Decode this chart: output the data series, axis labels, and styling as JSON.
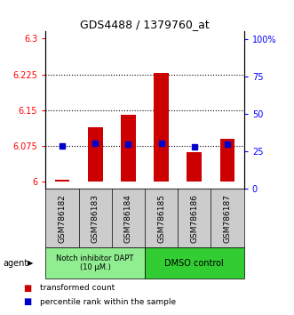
{
  "title": "GDS4488 / 1379760_at",
  "samples": [
    "GSM786182",
    "GSM786183",
    "GSM786184",
    "GSM786185",
    "GSM786186",
    "GSM786187"
  ],
  "bar_values": [
    6.004,
    6.115,
    6.14,
    6.228,
    6.063,
    6.09
  ],
  "bar_bottom": 6.0,
  "percentile_values": [
    0.285,
    0.305,
    0.298,
    0.305,
    0.283,
    0.298
  ],
  "ylim_left": [
    5.985,
    6.315
  ],
  "ylim_right": [
    0.0,
    1.05
  ],
  "yticks_left": [
    6.0,
    6.075,
    6.15,
    6.225,
    6.3
  ],
  "ytick_labels_left": [
    "6",
    "6.075",
    "6.15",
    "6.225",
    "6.3"
  ],
  "yticks_right": [
    0.0,
    0.25,
    0.5,
    0.75,
    1.0
  ],
  "ytick_labels_right": [
    "0",
    "25",
    "50",
    "75",
    "100%"
  ],
  "bar_color": "#cc0000",
  "percentile_color": "#0000cc",
  "group1_label": "Notch inhibitor DAPT\n(10 μM.)",
  "group2_label": "DMSO control",
  "group1_color": "#90ee90",
  "group2_color": "#32cd32",
  "agent_label": "agent",
  "legend_bar_label": "transformed count",
  "legend_pct_label": "percentile rank within the sample",
  "background_color": "#ffffff",
  "label_area_color": "#cccccc"
}
